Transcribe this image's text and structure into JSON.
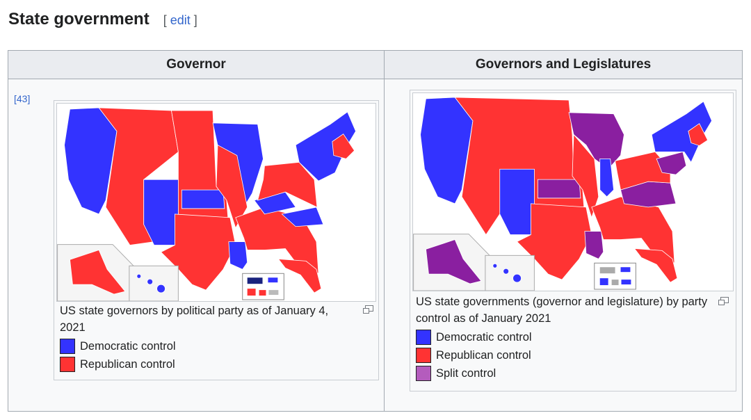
{
  "section": {
    "title": "State government",
    "edit_open": "[",
    "edit_label": "edit",
    "edit_close": "]"
  },
  "table": {
    "headers": [
      "Governor",
      "Governors and Legislatures"
    ],
    "ref": "[43]"
  },
  "colors": {
    "democratic": "#3333ff",
    "republican": "#ff3333",
    "split": "#b45cbd",
    "split_map": "#8a1fa0",
    "link": "#3366cc"
  },
  "left": {
    "caption": "US state governors by political party as of January 4, 2021",
    "legend": [
      {
        "label": "Democratic control",
        "color": "#3333ff"
      },
      {
        "label": "Republican control",
        "color": "#ff3333"
      }
    ]
  },
  "right": {
    "caption": "US state governments (governor and legislature) by party control as of January 2021",
    "legend": [
      {
        "label": "Democratic control",
        "color": "#3333ff"
      },
      {
        "label": "Republican control",
        "color": "#ff3333"
      },
      {
        "label": "Split control",
        "color": "#b45cbd"
      }
    ]
  },
  "icons": {
    "enlarge": "enlarge-icon",
    "map_left": "us-governors-map",
    "map_right": "us-state-government-map"
  }
}
